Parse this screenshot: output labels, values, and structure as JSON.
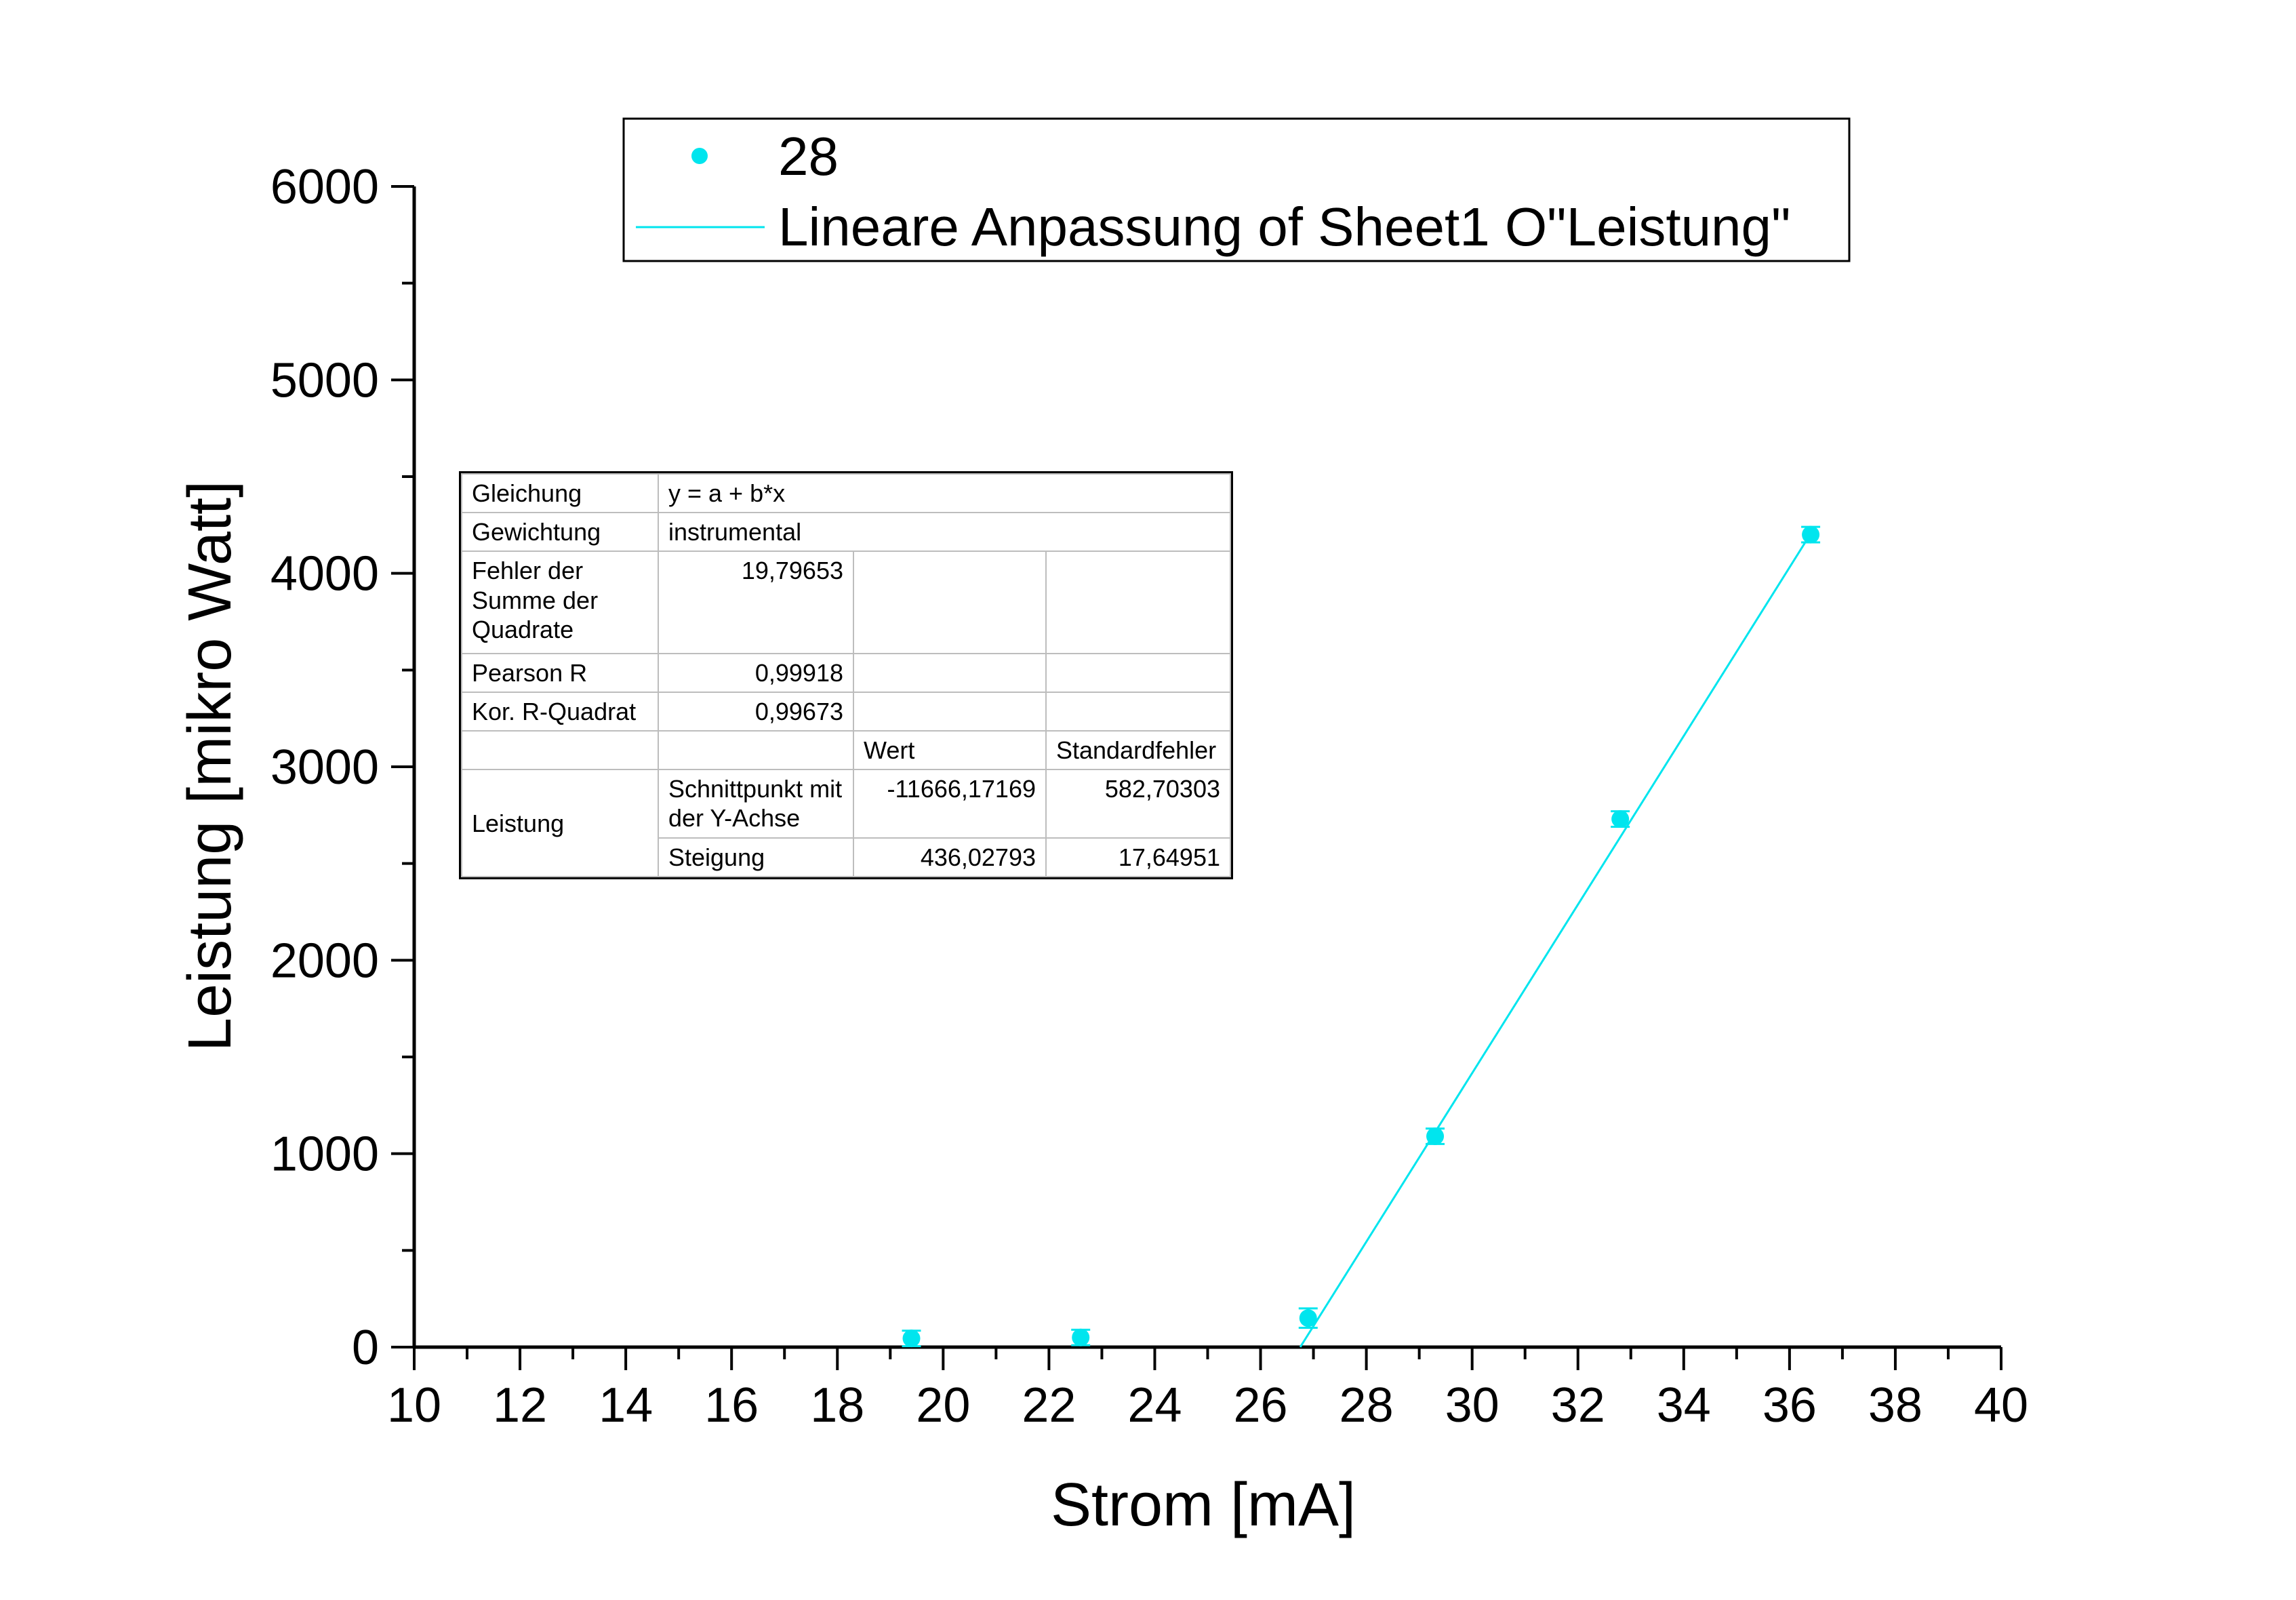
{
  "chart_data": {
    "type": "scatter",
    "xlabel": "Strom [mA]",
    "ylabel": "Leistung [mikro Watt]",
    "xlim": [
      10,
      40
    ],
    "ylim": [
      0,
      6000
    ],
    "x_ticks": [
      10,
      12,
      14,
      16,
      18,
      20,
      22,
      24,
      26,
      28,
      30,
      32,
      34,
      36,
      38,
      40
    ],
    "y_ticks": [
      0,
      1000,
      2000,
      3000,
      4000,
      5000,
      6000
    ],
    "grid": false,
    "legend_position": "top",
    "series": [
      {
        "name": "28",
        "kind": "scatter",
        "color": "#00e5ee",
        "x": [
          19.4,
          22.6,
          26.9,
          29.3,
          32.8,
          36.4
        ],
        "y": [
          45,
          50,
          150,
          1090,
          2730,
          4200
        ],
        "y_err": [
          40,
          40,
          50,
          40,
          40,
          40
        ]
      },
      {
        "name": "Lineare Anpassung of Sheet1 O\"Leistung\"",
        "kind": "line",
        "color": "#00e5ee",
        "x": [
          26.75,
          36.4
        ],
        "y": [
          0,
          4205
        ]
      }
    ],
    "fit_table": {
      "rows": [
        [
          "Gleichung",
          "y = a + b*x",
          "",
          ""
        ],
        [
          "Gewichtung",
          "instrumental",
          "",
          ""
        ],
        [
          "Fehler der Summe der Quadrate",
          "19,79653",
          "",
          ""
        ],
        [
          "Pearson R",
          "0,99918",
          "",
          ""
        ],
        [
          "Kor. R-Quadrat",
          "0,99673",
          "",
          ""
        ],
        [
          "",
          "",
          "Wert",
          "Standardfehler"
        ],
        [
          "Leistung",
          "Schnittpunkt mit der Y-Achse",
          "-11666,17169",
          "582,70303"
        ],
        [
          "",
          "Steigung",
          "436,02793",
          "17,64951"
        ]
      ]
    }
  }
}
